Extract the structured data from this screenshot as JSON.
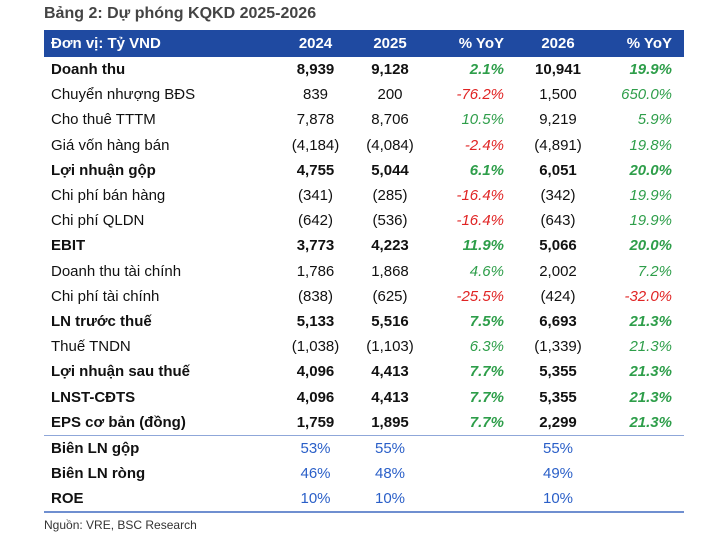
{
  "title": "Bảng 2: Dự phóng KQKD 2025-2026",
  "header": [
    "Đơn vị: Tỷ VND",
    "2024",
    "2025",
    "% YoY",
    "2026",
    "%  YoY"
  ],
  "rows": [
    {
      "label": "Doanh thu",
      "bold": true,
      "v2024": "8,939",
      "v2025": "9,128",
      "yoy25": "2.1%",
      "v2026": "10,941",
      "yoy26": "19.9%",
      "s25": "pos",
      "s26": "pos"
    },
    {
      "label": "Chuyển nhượng BĐS",
      "bold": false,
      "v2024": "839",
      "v2025": "200",
      "yoy25": "-76.2%",
      "v2026": "1,500",
      "yoy26": "650.0%",
      "s25": "neg",
      "s26": "pos"
    },
    {
      "label": "Cho thuê TTTM",
      "bold": false,
      "v2024": "7,878",
      "v2025": "8,706",
      "yoy25": "10.5%",
      "v2026": "9,219",
      "yoy26": "5.9%",
      "s25": "pos",
      "s26": "pos"
    },
    {
      "label": "Giá vốn hàng bán",
      "bold": false,
      "v2024": "(4,184)",
      "v2025": "(4,084)",
      "yoy25": "-2.4%",
      "v2026": "(4,891)",
      "yoy26": "19.8%",
      "s25": "neg",
      "s26": "pos"
    },
    {
      "label": "Lợi nhuận gộp",
      "bold": true,
      "v2024": "4,755",
      "v2025": "5,044",
      "yoy25": "6.1%",
      "v2026": "6,051",
      "yoy26": "20.0%",
      "s25": "pos",
      "s26": "pos"
    },
    {
      "label": "Chi phí bán hàng",
      "bold": false,
      "v2024": "(341)",
      "v2025": "(285)",
      "yoy25": "-16.4%",
      "v2026": "(342)",
      "yoy26": "19.9%",
      "s25": "neg",
      "s26": "pos"
    },
    {
      "label": "Chi phí QLDN",
      "bold": false,
      "v2024": "(642)",
      "v2025": "(536)",
      "yoy25": "-16.4%",
      "v2026": "(643)",
      "yoy26": "19.9%",
      "s25": "neg",
      "s26": "pos"
    },
    {
      "label": "EBIT",
      "bold": true,
      "v2024": "3,773",
      "v2025": "4,223",
      "yoy25": "11.9%",
      "v2026": "5,066",
      "yoy26": "20.0%",
      "s25": "pos",
      "s26": "pos"
    },
    {
      "label": "Doanh thu tài chính",
      "bold": false,
      "v2024": "1,786",
      "v2025": "1,868",
      "yoy25": "4.6%",
      "v2026": "2,002",
      "yoy26": "7.2%",
      "s25": "pos",
      "s26": "pos"
    },
    {
      "label": "Chi phí tài chính",
      "bold": false,
      "v2024": "(838)",
      "v2025": "(625)",
      "yoy25": "-25.5%",
      "v2026": "(424)",
      "yoy26": "-32.0%",
      "s25": "neg",
      "s26": "neg"
    },
    {
      "label": "LN trước thuế",
      "bold": true,
      "v2024": "5,133",
      "v2025": "5,516",
      "yoy25": "7.5%",
      "v2026": "6,693",
      "yoy26": "21.3%",
      "s25": "pos",
      "s26": "pos"
    },
    {
      "label": "Thuế TNDN",
      "bold": false,
      "v2024": "(1,038)",
      "v2025": "(1,103)",
      "yoy25": "6.3%",
      "v2026": "(1,339)",
      "yoy26": "21.3%",
      "s25": "pos",
      "s26": "pos"
    },
    {
      "label": "Lợi nhuận sau thuế",
      "bold": true,
      "v2024": "4,096",
      "v2025": "4,413",
      "yoy25": "7.7%",
      "v2026": "5,355",
      "yoy26": "21.3%",
      "s25": "pos",
      "s26": "pos"
    },
    {
      "label": "LNST-CĐTS",
      "bold": true,
      "v2024": "4,096",
      "v2025": "4,413",
      "yoy25": "7.7%",
      "v2026": "5,355",
      "yoy26": "21.3%",
      "s25": "pos",
      "s26": "pos"
    },
    {
      "label": "EPS cơ bản (đồng)",
      "bold": true,
      "v2024": "1,759",
      "v2025": "1,895",
      "yoy25": "7.7%",
      "v2026": "2,299",
      "yoy26": "21.3%",
      "s25": "pos",
      "s26": "pos"
    }
  ],
  "ratios": [
    {
      "label": "Biên LN gộp",
      "v2024": "53%",
      "v2025": "55%",
      "v2026": "55%"
    },
    {
      "label": "Biên LN ròng",
      "v2024": "46%",
      "v2025": "48%",
      "v2026": "49%"
    },
    {
      "label": "ROE",
      "v2024": "10%",
      "v2025": "10%",
      "v2026": "10%"
    }
  ],
  "source": "Nguồn: VRE, BSC Research",
  "colors": {
    "header_bg": "#1f4aa1",
    "positive": "#2e9e4a",
    "negative": "#e02424",
    "ratio": "#2a5fc8"
  }
}
